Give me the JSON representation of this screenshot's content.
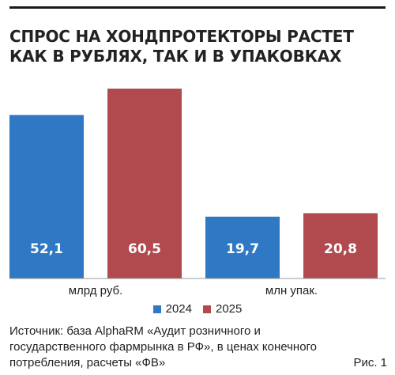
{
  "title_lines": [
    "СПРОС НА ХОНДПРОТЕКТОРЫ РАСТЕТ",
    "КАК В РУБЛЯХ, ТАК И В УПАКОВКАХ"
  ],
  "chart_data": [
    {
      "type": "bar",
      "categories": [
        "млрд руб."
      ],
      "series": [
        {
          "name": "2024",
          "values": [
            52.1
          ],
          "labels": [
            "52,1"
          ],
          "color": "#2f78c4"
        },
        {
          "name": "2025",
          "values": [
            60.5
          ],
          "labels": [
            "60,5"
          ],
          "color": "#b04a4f"
        }
      ],
      "ylim": [
        0,
        60.5
      ]
    },
    {
      "type": "bar",
      "categories": [
        "млн упак."
      ],
      "series": [
        {
          "name": "2024",
          "values": [
            19.7
          ],
          "labels": [
            "19,7"
          ],
          "color": "#2f78c4"
        },
        {
          "name": "2025",
          "values": [
            20.8
          ],
          "labels": [
            "20,8"
          ],
          "color": "#b04a4f"
        }
      ],
      "ylim": [
        0,
        60.5
      ]
    }
  ],
  "legend": [
    {
      "label": "2024",
      "color": "#2f78c4"
    },
    {
      "label": "2025",
      "color": "#b04a4f"
    }
  ],
  "source": {
    "line1": "Источник: база AlphaRM «Аудит розничного и",
    "line2": "государственного фармрынка в РФ», в ценах конечного",
    "line3": "потребления, расчеты «ФВ»",
    "figure_label": "Рис. 1"
  }
}
